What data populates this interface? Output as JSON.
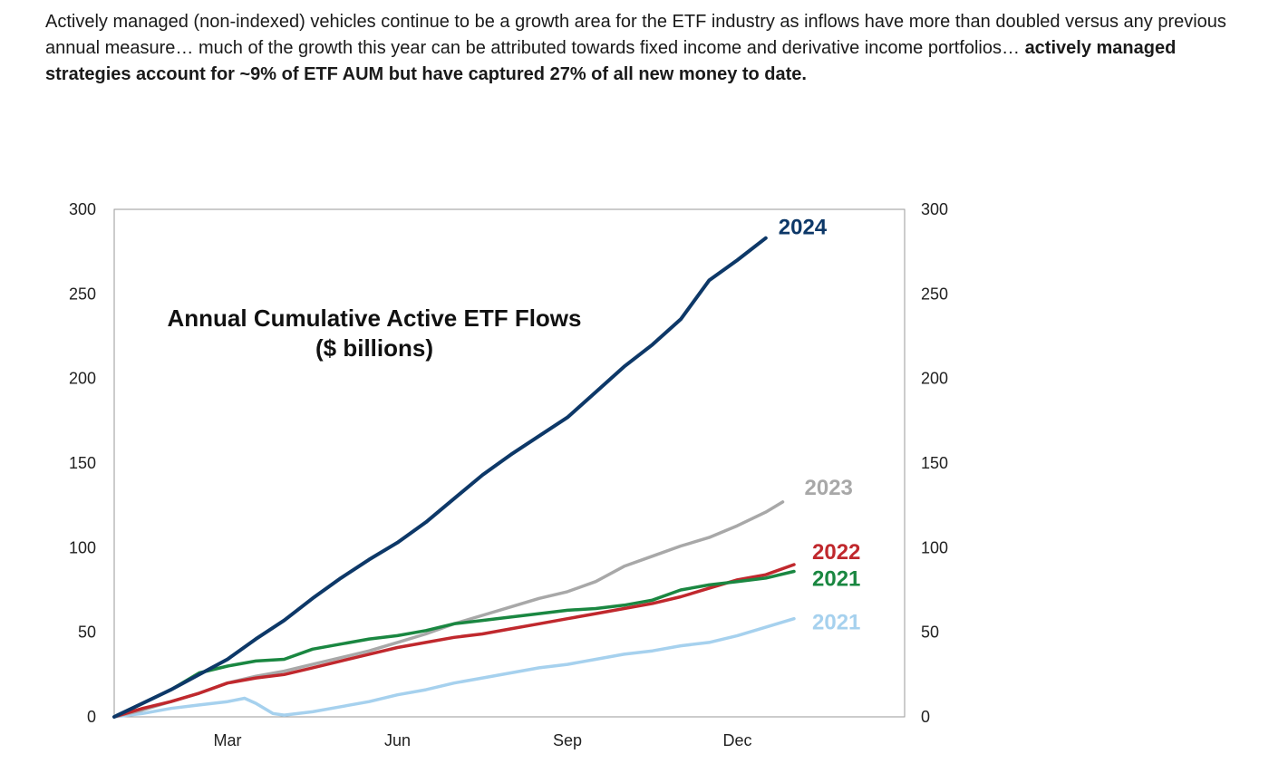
{
  "caption": {
    "normal": "Actively managed (non-indexed) vehicles continue to be a growth area for the ETF industry as inflows have more than doubled versus any previous annual measure… much of the growth this year can be attributed towards fixed income and derivative income portfolios… ",
    "bold": "actively managed strategies account for ~9% of ETF AUM but have captured 27% of all new money to date."
  },
  "chart_data": {
    "type": "line",
    "title": "Annual Cumulative Active ETF Flows",
    "subtitle": "($ billions)",
    "xlabel": "",
    "ylabel": "",
    "x_domain": [
      0,
      12
    ],
    "x_ticks": [
      {
        "label": "Mar",
        "x": 2
      },
      {
        "label": "Jun",
        "x": 5
      },
      {
        "label": "Sep",
        "x": 8
      },
      {
        "label": "Dec",
        "x": 11
      }
    ],
    "ylim": [
      0,
      300
    ],
    "y_ticks": [
      "0",
      "50",
      "100",
      "150",
      "200",
      "250",
      "300"
    ],
    "grid": false,
    "series": [
      {
        "name": "2024",
        "color": "#0d3868",
        "x": [
          0,
          0.5,
          1,
          1.5,
          2,
          2.5,
          3,
          3.5,
          4,
          4.5,
          5,
          5.5,
          6,
          6.5,
          7,
          7.5,
          8,
          8.5,
          9,
          9.5,
          10,
          10.5,
          11,
          11.5
        ],
        "values": [
          0,
          8,
          16,
          25,
          34,
          46,
          57,
          70,
          82,
          93,
          103,
          115,
          129,
          143,
          155,
          166,
          177,
          192,
          207,
          220,
          235,
          258,
          270,
          283
        ]
      },
      {
        "name": "2023",
        "color": "#a8a8a8",
        "x": [
          0,
          0.5,
          1,
          1.5,
          2,
          2.5,
          3,
          3.5,
          4,
          4.5,
          5,
          5.5,
          6,
          6.5,
          7,
          7.5,
          8,
          8.5,
          9,
          9.5,
          10,
          10.5,
          11,
          11.5,
          11.8
        ],
        "values": [
          0,
          4,
          9,
          14,
          20,
          24,
          27,
          31,
          35,
          39,
          44,
          49,
          55,
          60,
          65,
          70,
          74,
          80,
          89,
          95,
          101,
          106,
          113,
          121,
          127
        ]
      },
      {
        "name": "2022",
        "color": "#c0282d",
        "x": [
          0,
          0.5,
          1,
          1.5,
          2,
          2.5,
          3,
          3.5,
          4,
          4.5,
          5,
          5.5,
          6,
          6.5,
          7,
          7.5,
          8,
          8.5,
          9,
          9.5,
          10,
          10.5,
          11,
          11.5,
          12
        ],
        "values": [
          0,
          5,
          9,
          14,
          20,
          23,
          25,
          29,
          33,
          37,
          41,
          44,
          47,
          49,
          52,
          55,
          58,
          61,
          64,
          67,
          71,
          76,
          81,
          84,
          90
        ]
      },
      {
        "name": "2021",
        "color": "#1a8741",
        "x": [
          0,
          0.5,
          1,
          1.5,
          2,
          2.5,
          3,
          3.5,
          4,
          4.5,
          5,
          5.5,
          6,
          6.5,
          7,
          7.5,
          8,
          8.5,
          9,
          9.5,
          10,
          10.5,
          11,
          11.5,
          12
        ],
        "values": [
          0,
          8,
          16,
          26,
          30,
          33,
          34,
          40,
          43,
          46,
          48,
          51,
          55,
          57,
          59,
          61,
          63,
          64,
          66,
          69,
          75,
          78,
          80,
          82,
          86
        ]
      },
      {
        "name": "2021",
        "color": "#a6d1ee",
        "x": [
          0,
          0.5,
          1,
          1.5,
          2,
          2.3,
          2.5,
          2.8,
          3,
          3.5,
          4,
          4.5,
          5,
          5.5,
          6,
          6.5,
          7,
          7.5,
          8,
          8.5,
          9,
          9.5,
          10,
          10.5,
          11,
          11.5,
          12
        ],
        "values": [
          0,
          2,
          5,
          7,
          9,
          11,
          8,
          2,
          1,
          3,
          6,
          9,
          13,
          16,
          20,
          23,
          26,
          29,
          31,
          34,
          37,
          39,
          42,
          44,
          48,
          53,
          58
        ]
      }
    ]
  }
}
